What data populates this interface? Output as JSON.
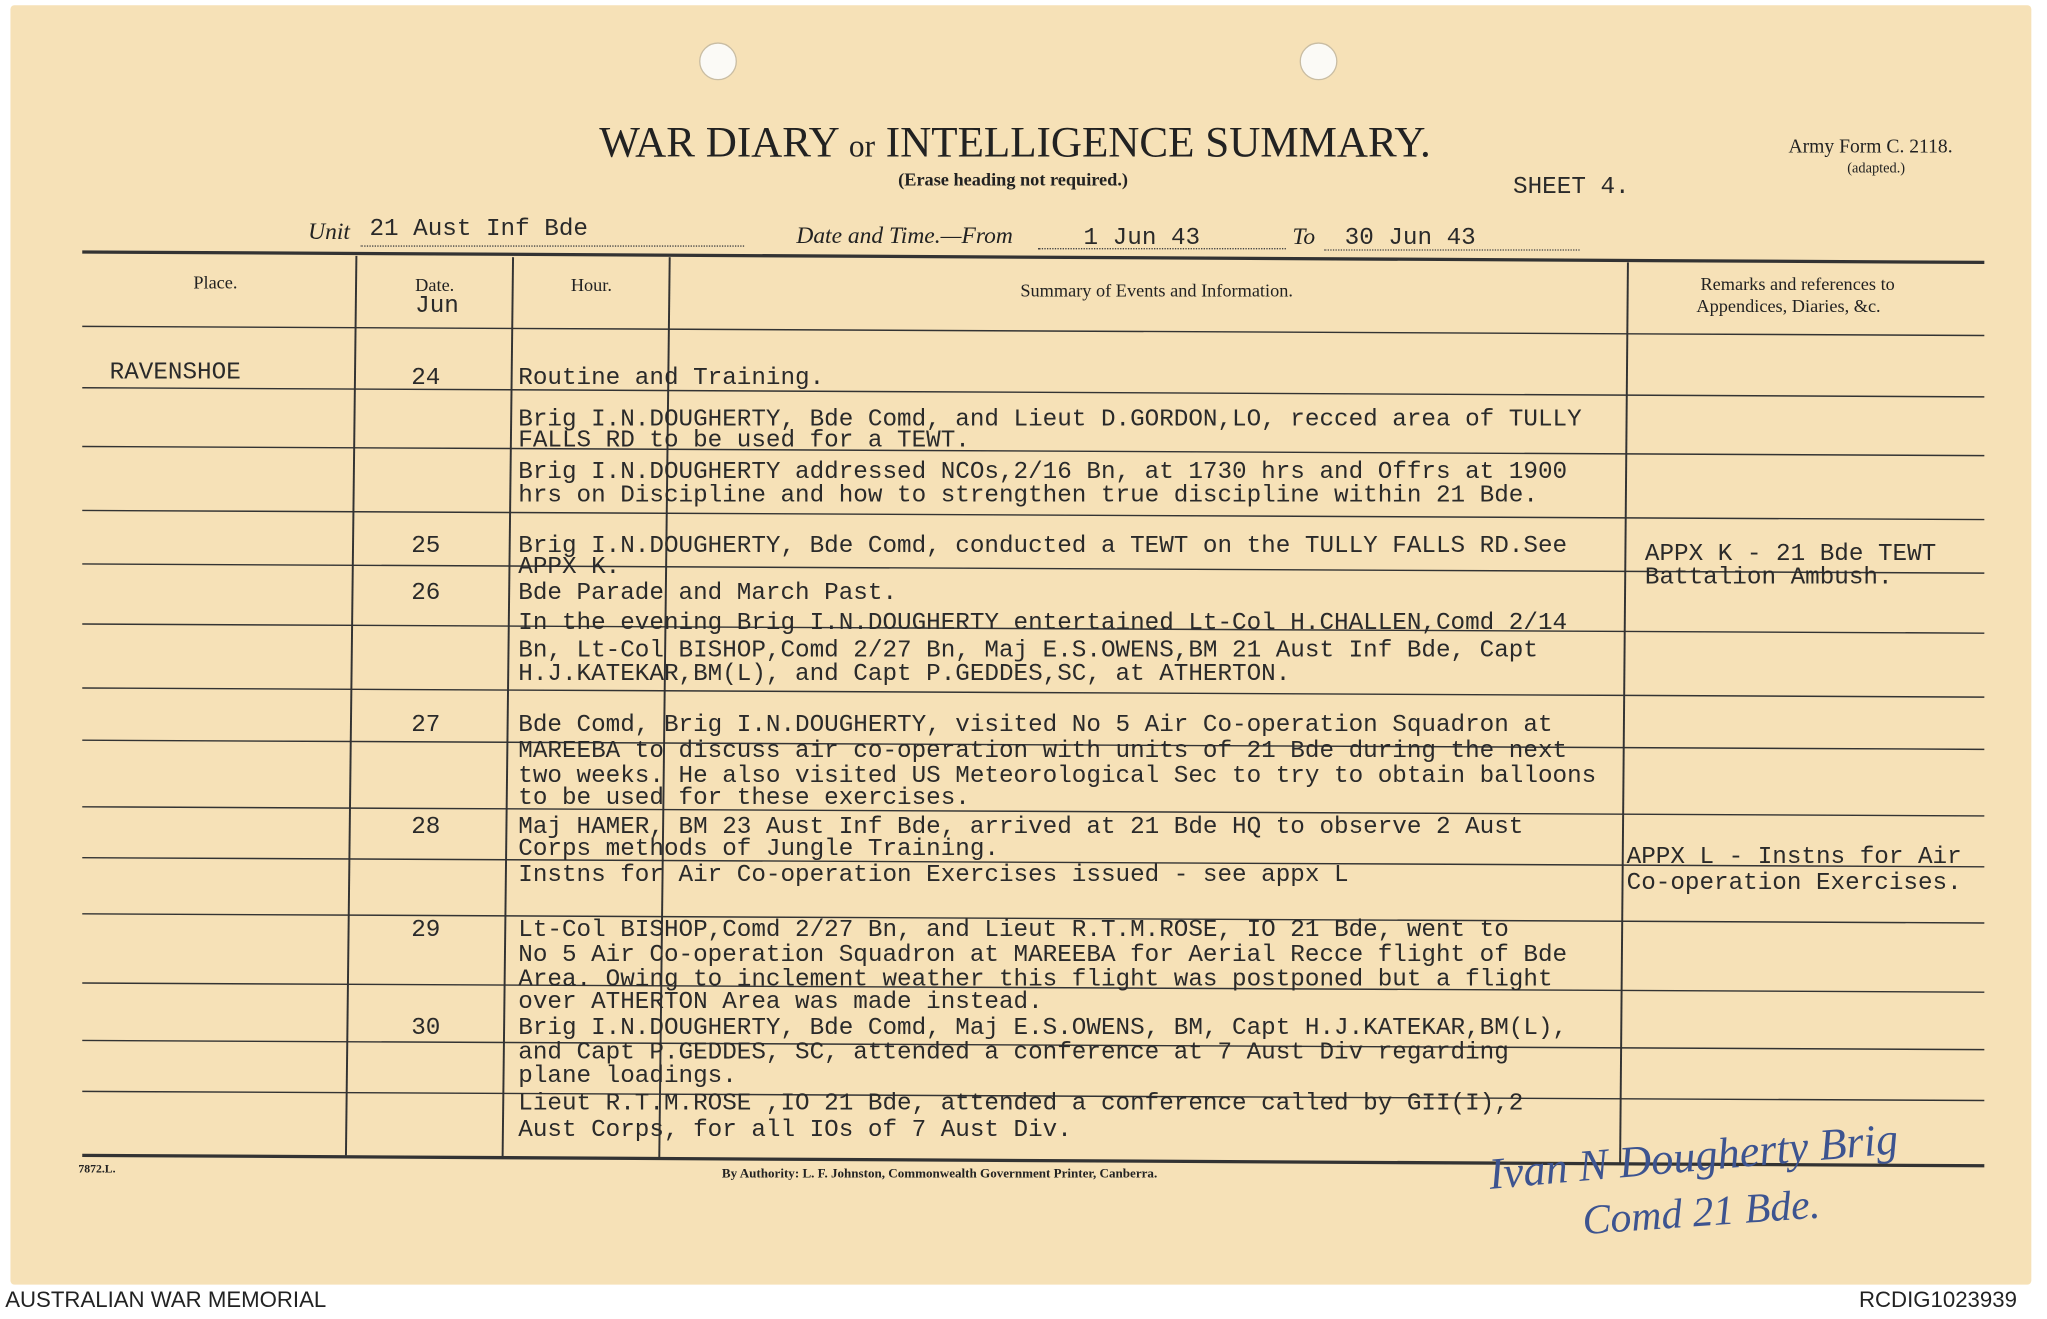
{
  "header": {
    "title_main_1": "WAR DIARY",
    "title_or": "or",
    "title_main_2": "INTELLIGENCE SUMMARY.",
    "subtitle": "(Erase heading not required.)",
    "form": "Army Form C. 2118.",
    "form_note": "(adapted.)",
    "sheet": "SHEET 4.",
    "unit_label": "Unit",
    "unit": "21 Aust Inf Bde",
    "date_label": "Date and Time.—From",
    "date_from": "1 Jun 43",
    "to_label": "To",
    "date_to": "30 Jun 43"
  },
  "columns": {
    "place": "Place.",
    "date": "Date.",
    "date_month": "Jun",
    "hour": "Hour.",
    "summary": "Summary of Events and Information.",
    "remarks_1": "Remarks and references to",
    "remarks_2": "Appendices, Diaries, &c."
  },
  "entries": [
    {
      "place": "RAVENSHOE",
      "date": "24",
      "lines": [
        "Routine and Training.",
        "Brig I.N.DOUGHERTY, Bde Comd, and Lieut D.GORDON,LO, recced area of TULLY",
        "FALLS RD to be used for a TEWT.",
        "Brig I.N.DOUGHERTY addressed NCOs,2/16 Bn, at 1730 hrs and Offrs at 1900",
        "hrs on Discipline and how to strengthen true discipline within 21 Bde."
      ]
    },
    {
      "date": "25",
      "lines": [
        "Brig I.N.DOUGHERTY, Bde Comd, conducted a TEWT on the TULLY FALLS RD.See",
        "APPX K."
      ],
      "remarks": [
        "APPX K - 21 Bde TEWT",
        "Battalion Ambush."
      ]
    },
    {
      "date": "26",
      "lines": [
        "Bde Parade and March Past.",
        "In the evening Brig I.N.DOUGHERTY entertained Lt-Col H.CHALLEN,Comd 2/14",
        "Bn, Lt-Col BISHOP,Comd 2/27 Bn, Maj E.S.OWENS,BM 21 Aust Inf Bde, Capt",
        "H.J.KATEKAR,BM(L), and Capt P.GEDDES,SC, at ATHERTON."
      ]
    },
    {
      "date": "27",
      "lines": [
        "Bde Comd, Brig I.N.DOUGHERTY, visited No 5 Air Co-operation Squadron at",
        "MAREEBA to discuss air co-operation with units of 21 Bde during the next",
        "two weeks. He also visited US Meteorological Sec to try to obtain balloons",
        "to be used for these exercises."
      ]
    },
    {
      "date": "28",
      "lines": [
        "Maj HAMER, BM 23 Aust Inf Bde, arrived at 21 Bde HQ to observe 2 Aust",
        "Corps methods of Jungle Training.",
        "Instns for Air Co-operation Exercises issued - see appx L"
      ],
      "remarks": [
        "APPX L - Instns for Air",
        "Co-operation Exercises."
      ]
    },
    {
      "date": "29",
      "lines": [
        "Lt-Col BISHOP,Comd 2/27 Bn, and Lieut R.T.M.ROSE, IO 21 Bde, went to",
        "No 5 Air Co-operation Squadron at MAREEBA for Aerial Recce flight of Bde",
        "Area. Owing to inclement weather this flight was postponed but a flight",
        "over ATHERTON Area was made instead."
      ]
    },
    {
      "date": "30",
      "lines": [
        "Brig I.N.DOUGHERTY, Bde Comd, Maj E.S.OWENS, BM, Capt H.J.KATEKAR,BM(L),",
        "and Capt P.GEDDES, SC, attended a conference at 7 Aust Div regarding",
        "plane loadings.",
        "Lieut R.T.M.ROSE ,IO 21 Bde, attended a conference called by GII(I),2",
        "Aust Corps, for all IOs of 7 Aust Div."
      ]
    }
  ],
  "footer": {
    "code": "7872.L.",
    "authority": "By Authority: L. F. Johnston, Commonwealth Government Printer, Canberra.",
    "signature_1": "Ivan N Dougherty Brig",
    "signature_2": "Comd 21 Bde."
  },
  "archive": {
    "left": "AUSTRALIAN WAR MEMORIAL",
    "right": "RCDIG1023939"
  }
}
